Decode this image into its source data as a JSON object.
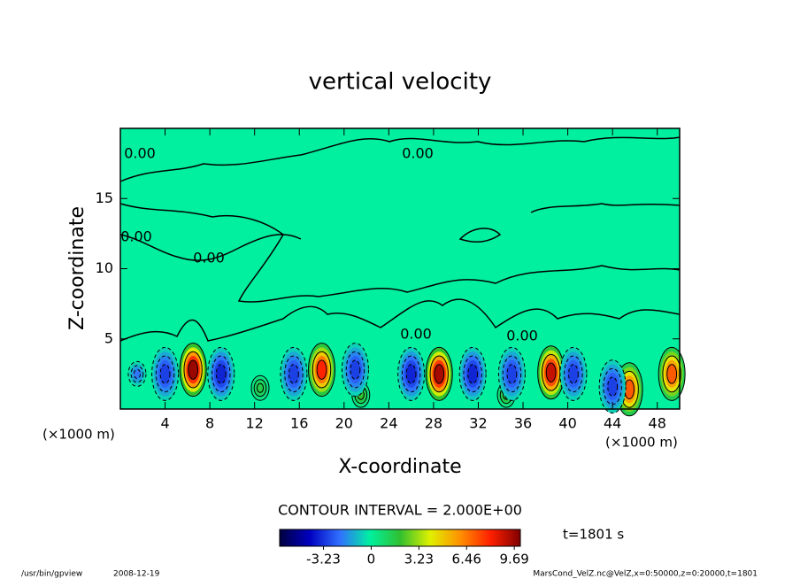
{
  "chart_data": {
    "type": "contour",
    "title": "vertical velocity",
    "xlabel": "X-coordinate",
    "ylabel": "Z-coordinate",
    "x_unit": "(×1000 m)",
    "xlim": [
      0,
      50
    ],
    "ylim": [
      0,
      20
    ],
    "xticks": [
      4,
      8,
      12,
      16,
      20,
      24,
      28,
      32,
      36,
      40,
      44,
      48
    ],
    "yticks": [
      5,
      10,
      15
    ],
    "contour_labels": [
      "0.00",
      "0.00",
      "0.00",
      "0.00",
      "0.00",
      "0.00"
    ],
    "contour_interval": "CONTOUR INTERVAL = 2.000E+00",
    "time_label": "t=1801 s",
    "features": [
      {
        "x": 6.5,
        "z": 2.8,
        "value": 9.69
      },
      {
        "x": 18.0,
        "z": 2.8,
        "value": 8.0
      },
      {
        "x": 28.5,
        "z": 2.5,
        "value": 9.5
      },
      {
        "x": 38.5,
        "z": 2.6,
        "value": 9.0
      },
      {
        "x": 45.5,
        "z": 1.4,
        "value": 7.0
      },
      {
        "x": 49.3,
        "z": 2.5,
        "value": 7.0
      },
      {
        "x": 21.5,
        "z": 1.0,
        "value": 2.0
      },
      {
        "x": 34.5,
        "z": 1.0,
        "value": 2.0
      },
      {
        "x": 12.5,
        "z": 1.5,
        "value": 1.5
      },
      {
        "x": 1.5,
        "z": 2.5,
        "value": -2.0
      },
      {
        "x": 4.0,
        "z": 2.5,
        "value": -3.0
      },
      {
        "x": 9.0,
        "z": 2.5,
        "value": -3.5
      },
      {
        "x": 15.5,
        "z": 2.5,
        "value": -3.0
      },
      {
        "x": 21.0,
        "z": 2.8,
        "value": -3.0
      },
      {
        "x": 26.0,
        "z": 2.5,
        "value": -3.5
      },
      {
        "x": 31.5,
        "z": 2.5,
        "value": -3.5
      },
      {
        "x": 35.0,
        "z": 2.5,
        "value": -3.0
      },
      {
        "x": 40.5,
        "z": 2.5,
        "value": -3.0
      },
      {
        "x": 44.0,
        "z": 1.6,
        "value": -3.0
      }
    ],
    "colorbar": {
      "lim": [
        -6.2,
        10.1
      ],
      "ticks": [
        -3.23,
        0,
        3.23,
        6.46,
        9.69
      ],
      "colors": [
        "#000040",
        "#0000c0",
        "#3070ff",
        "#00f0a0",
        "#30c030",
        "#e0f000",
        "#ff9000",
        "#ff2000",
        "#800000"
      ]
    },
    "footer": {
      "program": "/usr/bin/gpview",
      "date": "2008-12-19",
      "source": "MarsCond_VelZ.nc@VelZ,x=0:50000,z=0:20000,t=1801"
    }
  }
}
